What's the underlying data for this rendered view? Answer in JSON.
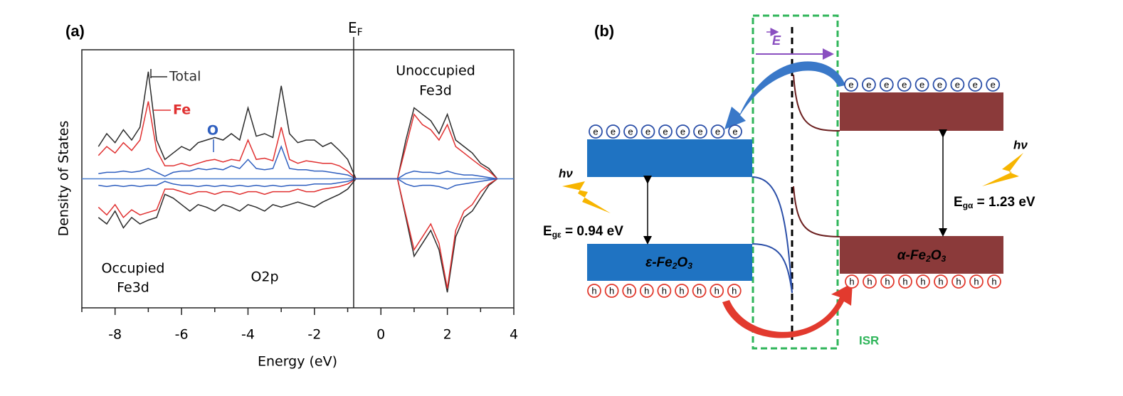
{
  "chart_data": {
    "type": "line",
    "panel_label": "(a)",
    "x_label": "Energy (eV)",
    "y_label": "Density of States",
    "xlim": [
      -9,
      4
    ],
    "xticks": [
      -8,
      -6,
      -4,
      -2,
      0,
      2,
      4
    ],
    "xminor": [
      -9,
      -7,
      -5,
      -3,
      -1,
      1,
      3
    ],
    "ylim": [
      -1,
      1
    ],
    "fermi_level": {
      "value": -0.82,
      "label": "E",
      "subscript": "F"
    },
    "annotations": {
      "occupied": [
        "Occupied",
        "Fe3d"
      ],
      "o2p": "O2p",
      "unoccupied": [
        "Unoccupied",
        "Fe3d"
      ]
    },
    "x": [
      -8.5,
      -8.25,
      -8,
      -7.75,
      -7.5,
      -7.25,
      -7,
      -6.75,
      -6.5,
      -6.25,
      -6,
      -5.75,
      -5.5,
      -5.25,
      -5,
      -4.75,
      -4.5,
      -4.25,
      -4,
      -3.75,
      -3.5,
      -3.25,
      -3,
      -2.75,
      -2.5,
      -2.25,
      -2,
      -1.75,
      -1.5,
      -1.25,
      -1,
      -0.75,
      -0.5,
      -0.25,
      0,
      0.25,
      0.5,
      0.75,
      1,
      1.25,
      1.5,
      1.75,
      2,
      2.25,
      2.5,
      2.75,
      3,
      3.25,
      3.5
    ],
    "series": [
      {
        "name": "Total",
        "color": "#2b2b2b",
        "values": [
          0.25,
          0.35,
          0.28,
          0.38,
          0.3,
          0.4,
          0.83,
          0.3,
          0.15,
          0.2,
          0.25,
          0.22,
          0.28,
          0.3,
          0.32,
          0.3,
          0.35,
          0.3,
          0.55,
          0.33,
          0.35,
          0.32,
          0.72,
          0.35,
          0.28,
          0.3,
          0.3,
          0.25,
          0.28,
          0.22,
          0.15,
          0,
          0,
          0,
          0,
          0,
          0,
          0.3,
          0.55,
          0.5,
          0.45,
          0.35,
          0.5,
          0.3,
          0.25,
          0.2,
          0.12,
          0.08,
          0
        ],
        "values_down": [
          -0.3,
          -0.35,
          -0.25,
          -0.38,
          -0.3,
          -0.35,
          -0.32,
          -0.3,
          -0.12,
          -0.15,
          -0.2,
          -0.25,
          -0.2,
          -0.22,
          -0.25,
          -0.2,
          -0.22,
          -0.25,
          -0.2,
          -0.22,
          -0.25,
          -0.2,
          -0.22,
          -0.2,
          -0.18,
          -0.2,
          -0.22,
          -0.18,
          -0.15,
          -0.12,
          -0.08,
          0,
          0,
          0,
          0,
          0,
          0,
          -0.3,
          -0.6,
          -0.5,
          -0.4,
          -0.55,
          -0.88,
          -0.45,
          -0.3,
          -0.25,
          -0.15,
          -0.05,
          0
        ]
      },
      {
        "name": "Fe",
        "color": "#e03030",
        "values": [
          0.18,
          0.25,
          0.2,
          0.28,
          0.22,
          0.3,
          0.6,
          0.22,
          0.1,
          0.1,
          0.12,
          0.1,
          0.12,
          0.14,
          0.15,
          0.13,
          0.15,
          0.14,
          0.3,
          0.15,
          0.16,
          0.14,
          0.4,
          0.15,
          0.12,
          0.14,
          0.13,
          0.12,
          0.12,
          0.1,
          0.06,
          0,
          0,
          0,
          0,
          0,
          0,
          0.25,
          0.5,
          0.42,
          0.38,
          0.3,
          0.42,
          0.25,
          0.2,
          0.15,
          0.1,
          0.06,
          0
        ],
        "values_down": [
          -0.22,
          -0.28,
          -0.2,
          -0.3,
          -0.24,
          -0.28,
          -0.26,
          -0.24,
          -0.08,
          -0.08,
          -0.1,
          -0.12,
          -0.1,
          -0.1,
          -0.12,
          -0.1,
          -0.1,
          -0.12,
          -0.1,
          -0.1,
          -0.12,
          -0.1,
          -0.1,
          -0.1,
          -0.08,
          -0.1,
          -0.1,
          -0.08,
          -0.07,
          -0.06,
          -0.04,
          0,
          0,
          0,
          0,
          0,
          0,
          -0.28,
          -0.55,
          -0.45,
          -0.35,
          -0.5,
          -0.85,
          -0.4,
          -0.25,
          -0.2,
          -0.1,
          -0.04,
          0
        ]
      },
      {
        "name": "O",
        "color": "#2f5fbf",
        "values": [
          0.04,
          0.05,
          0.05,
          0.06,
          0.05,
          0.06,
          0.08,
          0.05,
          0.02,
          0.05,
          0.06,
          0.06,
          0.08,
          0.07,
          0.08,
          0.07,
          0.1,
          0.08,
          0.15,
          0.08,
          0.07,
          0.08,
          0.25,
          0.08,
          0.07,
          0.07,
          0.06,
          0.06,
          0.05,
          0.04,
          0.03,
          0,
          0,
          0,
          0,
          0,
          0,
          0.04,
          0.06,
          0.05,
          0.05,
          0.04,
          0.06,
          0.04,
          0.03,
          0.03,
          0.02,
          0.01,
          0
        ],
        "values_down": [
          -0.05,
          -0.06,
          -0.05,
          -0.06,
          -0.05,
          -0.06,
          -0.05,
          -0.05,
          -0.02,
          -0.04,
          -0.05,
          -0.05,
          -0.06,
          -0.05,
          -0.06,
          -0.05,
          -0.06,
          -0.05,
          -0.06,
          -0.05,
          -0.06,
          -0.05,
          -0.06,
          -0.05,
          -0.05,
          -0.05,
          -0.04,
          -0.04,
          -0.04,
          -0.03,
          -0.02,
          0,
          0,
          0,
          0,
          0,
          0,
          -0.04,
          -0.06,
          -0.05,
          -0.05,
          -0.06,
          -0.08,
          -0.05,
          -0.04,
          -0.03,
          -0.02,
          -0.01,
          0
        ]
      }
    ]
  },
  "diagram": {
    "panel_label": "(b)",
    "field_label": "E",
    "electron": "e",
    "hole": "h",
    "photon": "hν",
    "gap_eps": {
      "symbol": "E",
      "sub": "gε",
      "text": " = 0.94 eV"
    },
    "gap_alpha": {
      "symbol": "E",
      "sub": "gα",
      "text": " = 1.23 eV"
    },
    "eps_phase": [
      "ε-Fe",
      "2",
      "O",
      "3"
    ],
    "alpha_phase": [
      "α-Fe",
      "2",
      "O",
      "3"
    ],
    "region": "ISR"
  }
}
